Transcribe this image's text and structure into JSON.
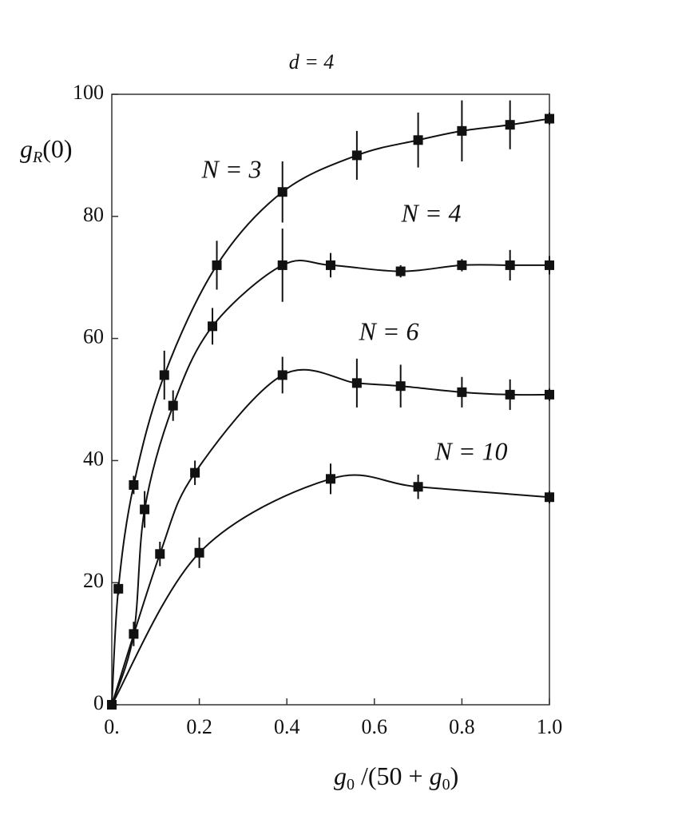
{
  "chart_data": {
    "type": "scatter",
    "title": "d = 4",
    "y_label": [
      "g",
      "R",
      "(0)"
    ],
    "x_label": [
      "g",
      "0",
      " /(50 + ",
      "g",
      "0",
      ")"
    ],
    "xlim": [
      0,
      1
    ],
    "ylim": [
      0,
      100
    ],
    "xticks": [
      {
        "value": 0,
        "label": "0."
      },
      0.2,
      0.4,
      0.6,
      0.8,
      {
        "value": 1,
        "label": "1.0"
      }
    ],
    "yticks": [
      0,
      20,
      40,
      60,
      80,
      100
    ],
    "color": "#111111",
    "series": [
      {
        "name": "N = 3",
        "x": [
          0,
          0.015,
          0.05,
          0.12,
          0.24,
          0.39,
          0.56,
          0.7,
          0.8,
          0.91,
          1.0
        ],
        "values": [
          0,
          19,
          36,
          54,
          72,
          84,
          90,
          92.5,
          94,
          95,
          96
        ],
        "errors": [
          0,
          1,
          1.5,
          4,
          4,
          5,
          4,
          4.5,
          5,
          4,
          1
        ]
      },
      {
        "name": "N = 4",
        "x": [
          0,
          0.05,
          0.075,
          0.14,
          0.23,
          0.39,
          0.5,
          0.66,
          0.8,
          0.91,
          1.0
        ],
        "values": [
          0,
          11.6,
          32,
          49,
          62,
          72,
          72,
          71,
          72,
          72,
          72
        ],
        "errors": [
          0,
          2,
          3,
          2.5,
          3,
          6,
          2,
          1,
          1,
          2.5,
          1.5
        ]
      },
      {
        "name": "N = 6",
        "x": [
          0,
          0.11,
          0.19,
          0.39,
          0.56,
          0.66,
          0.8,
          0.91,
          1.0
        ],
        "values": [
          0,
          24.7,
          38,
          54,
          52.7,
          52.2,
          51.2,
          50.8,
          50.8
        ],
        "errors": [
          0,
          2,
          2,
          3,
          4,
          3.5,
          2.5,
          2.5,
          1
        ]
      },
      {
        "name": "N = 10",
        "x": [
          0,
          0.2,
          0.5,
          0.7,
          1.0
        ],
        "values": [
          0,
          24.9,
          37,
          35.7,
          34
        ],
        "errors": [
          0,
          2.5,
          2.5,
          2,
          1
        ]
      }
    ]
  }
}
